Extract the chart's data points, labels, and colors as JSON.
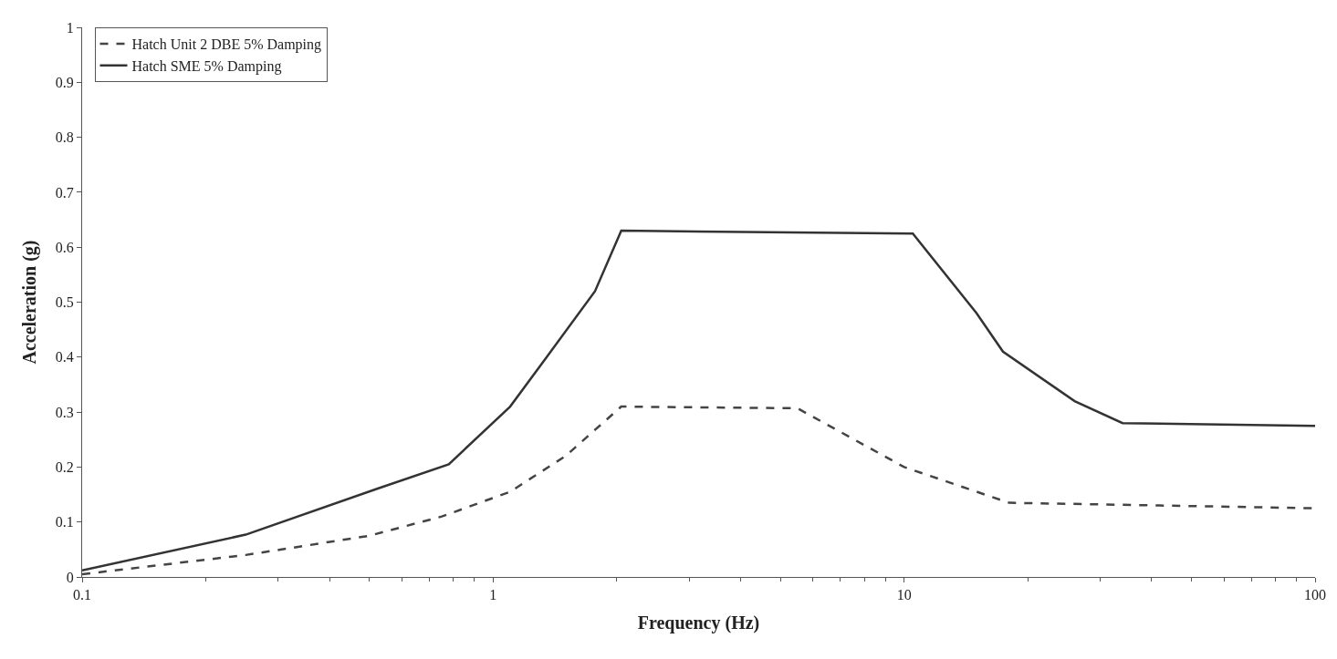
{
  "chart_data": {
    "type": "line",
    "xlabel": "Frequency (Hz)",
    "ylabel": "Acceleration (g)",
    "log": "x",
    "legend": "top left",
    "marker": "none",
    "xlim": [
      0.1,
      100
    ],
    "xticks": [
      0.1,
      1,
      10,
      100
    ],
    "ylim": [
      0,
      1
    ],
    "yticks": [
      0,
      0.1,
      0.2,
      0.3,
      0.4,
      0.5,
      0.6,
      0.7,
      0.8,
      0.9,
      1
    ],
    "series": [
      {
        "name": "Hatch Unit 2 DBE 5% Damping",
        "color": "#444444",
        "line_style": "dashed",
        "x": [
          0.1,
          0.25,
          0.5,
          0.75,
          1.1,
          1.5,
          2.05,
          5.5,
          10,
          18,
          100
        ],
        "values": [
          0.005,
          0.04,
          0.075,
          0.11,
          0.155,
          0.22,
          0.31,
          0.307,
          0.2,
          0.135,
          0.125
        ]
      },
      {
        "name": "Hatch SME 5% Damping",
        "color": "#333333",
        "line_style": "solid",
        "x": [
          0.1,
          0.25,
          0.52,
          0.78,
          1.1,
          1.35,
          1.77,
          2.05,
          10.5,
          15,
          17.4,
          26,
          34,
          100
        ],
        "values": [
          0.012,
          0.077,
          0.16,
          0.205,
          0.31,
          0.4,
          0.52,
          0.63,
          0.625,
          0.48,
          0.41,
          0.32,
          0.28,
          0.275
        ]
      }
    ]
  }
}
